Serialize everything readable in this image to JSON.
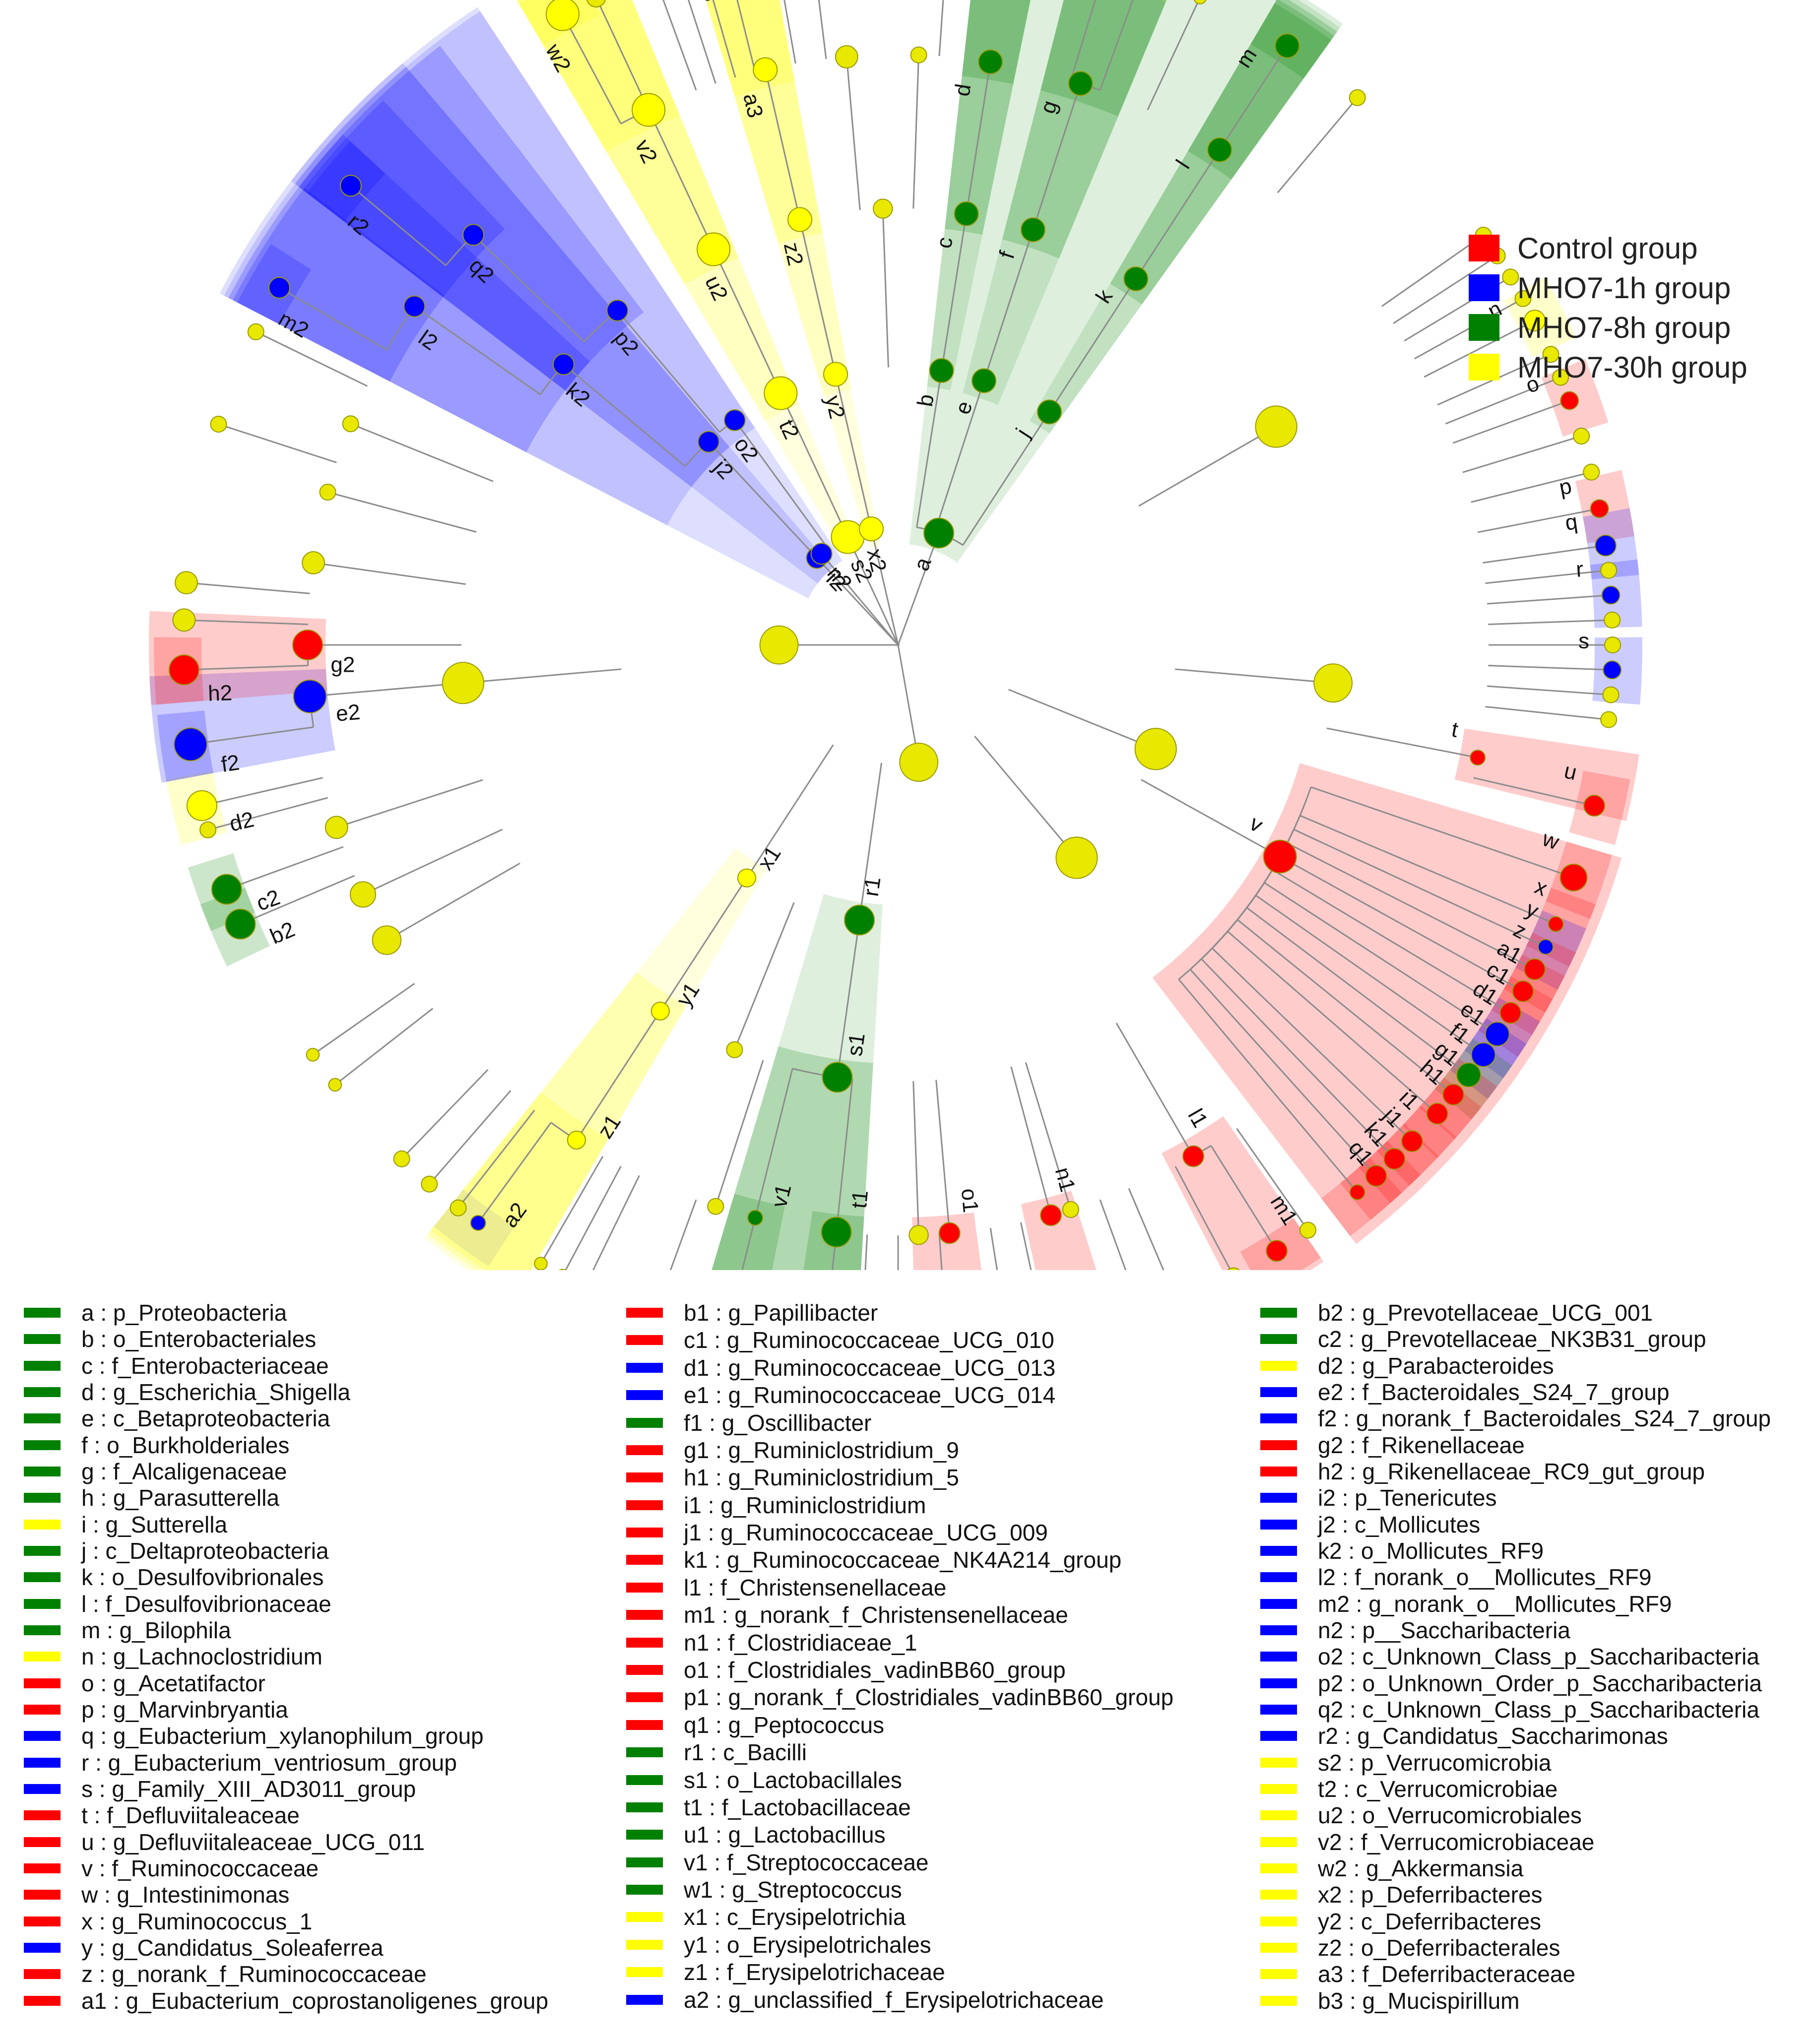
{
  "groups": [
    {
      "name": "Control group",
      "color": "#ff0000"
    },
    {
      "name": "MHO7-1h group",
      "color": "#0000ff"
    },
    {
      "name": "MHO7-8h group",
      "color": "#008000"
    },
    {
      "name": "MHO7-30h group",
      "color": "#ffff00"
    }
  ],
  "colors": {
    "Control": "#ff0000",
    "1h": "#0000ff",
    "8h": "#008000",
    "30h": "#ffff00",
    "node_plain": "#e8e800",
    "node_stroke": "#9a9a00",
    "branch": "#8c8c8c",
    "unclassified_band": "#a0a0a0"
  },
  "taxa": [
    {
      "code": "a",
      "name": "p_Proteobacteria",
      "group": "8h"
    },
    {
      "code": "b",
      "name": "o_Enterobacteriales",
      "group": "8h"
    },
    {
      "code": "c",
      "name": "f_Enterobacteriaceae",
      "group": "8h"
    },
    {
      "code": "d",
      "name": "g_Escherichia_Shigella",
      "group": "8h"
    },
    {
      "code": "e",
      "name": "c_Betaproteobacteria",
      "group": "8h"
    },
    {
      "code": "f",
      "name": "o_Burkholderiales",
      "group": "8h"
    },
    {
      "code": "g",
      "name": "f_Alcaligenaceae",
      "group": "8h"
    },
    {
      "code": "h",
      "name": "g_Parasutterella",
      "group": "8h"
    },
    {
      "code": "i",
      "name": "g_Sutterella",
      "group": "30h"
    },
    {
      "code": "j",
      "name": "c_Deltaproteobacteria",
      "group": "8h"
    },
    {
      "code": "k",
      "name": "o_Desulfovibrionales",
      "group": "8h"
    },
    {
      "code": "l",
      "name": "f_Desulfovibrionaceae",
      "group": "8h"
    },
    {
      "code": "m",
      "name": "g_Bilophila",
      "group": "8h"
    },
    {
      "code": "n",
      "name": "g_Lachnoclostridium",
      "group": "30h"
    },
    {
      "code": "o",
      "name": "g_Acetatifactor",
      "group": "Control"
    },
    {
      "code": "p",
      "name": "g_Marvinbryantia",
      "group": "Control"
    },
    {
      "code": "q",
      "name": "g_Eubacterium_xylanophilum_group",
      "group": "1h"
    },
    {
      "code": "r",
      "name": "g_Eubacterium_ventriosum_group",
      "group": "1h"
    },
    {
      "code": "s",
      "name": "g_Family_XIII_AD3011_group",
      "group": "1h"
    },
    {
      "code": "t",
      "name": "f_Defluviitaleaceae",
      "group": "Control"
    },
    {
      "code": "u",
      "name": "g_Defluviitaleaceae_UCG_011",
      "group": "Control"
    },
    {
      "code": "v",
      "name": "f_Ruminococcaceae",
      "group": "Control"
    },
    {
      "code": "w",
      "name": "g_Intestinimonas",
      "group": "Control"
    },
    {
      "code": "x",
      "name": "g_Ruminococcus_1",
      "group": "Control"
    },
    {
      "code": "y",
      "name": "g_Candidatus_Soleaferrea",
      "group": "1h"
    },
    {
      "code": "z",
      "name": "g_norank_f_Ruminococcaceae",
      "group": "Control"
    },
    {
      "code": "a1",
      "name": "g_Eubacterium_coprostanoligenes_group",
      "group": "Control"
    },
    {
      "code": "b1",
      "name": "g_Papillibacter",
      "group": "Control"
    },
    {
      "code": "c1",
      "name": "g_Ruminococcaceae_UCG_010",
      "group": "Control"
    },
    {
      "code": "d1",
      "name": "g_Ruminococcaceae_UCG_013",
      "group": "1h"
    },
    {
      "code": "e1",
      "name": "g_Ruminococcaceae_UCG_014",
      "group": "1h"
    },
    {
      "code": "f1",
      "name": "g_Oscillibacter",
      "group": "8h"
    },
    {
      "code": "g1",
      "name": "g_Ruminiclostridium_9",
      "group": "Control"
    },
    {
      "code": "h1",
      "name": "g_Ruminiclostridium_5",
      "group": "Control"
    },
    {
      "code": "i1",
      "name": "g_Ruminiclostridium",
      "group": "Control"
    },
    {
      "code": "j1",
      "name": "g_Ruminococcaceae_UCG_009",
      "group": "Control"
    },
    {
      "code": "k1",
      "name": "g_Ruminococcaceae_NK4A214_group",
      "group": "Control"
    },
    {
      "code": "l1",
      "name": "f_Christensenellaceae",
      "group": "Control"
    },
    {
      "code": "m1",
      "name": "g_norank_f_Christensenellaceae",
      "group": "Control"
    },
    {
      "code": "n1",
      "name": "f_Clostridiaceae_1",
      "group": "Control"
    },
    {
      "code": "o1",
      "name": "f_Clostridiales_vadinBB60_group",
      "group": "Control"
    },
    {
      "code": "p1",
      "name": "g_norank_f_Clostridiales_vadinBB60_group",
      "group": "Control"
    },
    {
      "code": "q1",
      "name": "g_Peptococcus",
      "group": "Control"
    },
    {
      "code": "r1",
      "name": "c_Bacilli",
      "group": "8h"
    },
    {
      "code": "s1",
      "name": "o_Lactobacillales",
      "group": "8h"
    },
    {
      "code": "t1",
      "name": "f_Lactobacillaceae",
      "group": "8h"
    },
    {
      "code": "u1",
      "name": "g_Lactobacillus",
      "group": "8h"
    },
    {
      "code": "v1",
      "name": "f_Streptococcaceae",
      "group": "8h"
    },
    {
      "code": "w1",
      "name": "g_Streptococcus",
      "group": "8h"
    },
    {
      "code": "x1",
      "name": "c_Erysipelotrichia",
      "group": "30h"
    },
    {
      "code": "y1",
      "name": "o_Erysipelotrichales",
      "group": "30h"
    },
    {
      "code": "z1",
      "name": "f_Erysipelotrichaceae",
      "group": "30h"
    },
    {
      "code": "a2",
      "name": "g_unclassified_f_Erysipelotrichaceae",
      "group": "1h"
    },
    {
      "code": "b2",
      "name": "g_Prevotellaceae_UCG_001",
      "group": "8h"
    },
    {
      "code": "c2",
      "name": "g_Prevotellaceae_NK3B31_group",
      "group": "8h"
    },
    {
      "code": "d2",
      "name": "g_Parabacteroides",
      "group": "30h"
    },
    {
      "code": "e2",
      "name": "f_Bacteroidales_S24_7_group",
      "group": "1h"
    },
    {
      "code": "f2",
      "name": "g_norank_f_Bacteroidales_S24_7_group",
      "group": "1h"
    },
    {
      "code": "g2",
      "name": "f_Rikenellaceae",
      "group": "Control"
    },
    {
      "code": "h2",
      "name": "g_Rikenellaceae_RC9_gut_group",
      "group": "Control"
    },
    {
      "code": "i2",
      "name": "p_Tenericutes",
      "group": "1h"
    },
    {
      "code": "j2",
      "name": "c_Mollicutes",
      "group": "1h"
    },
    {
      "code": "k2",
      "name": "o_Mollicutes_RF9",
      "group": "1h"
    },
    {
      "code": "l2",
      "name": "f_norank_o__Mollicutes_RF9",
      "group": "1h"
    },
    {
      "code": "m2",
      "name": "g_norank_o__Mollicutes_RF9",
      "group": "1h"
    },
    {
      "code": "n2",
      "name": "p__Saccharibacteria",
      "group": "1h"
    },
    {
      "code": "o2",
      "name": "c_Unknown_Class_p_Saccharibacteria",
      "group": "1h"
    },
    {
      "code": "p2",
      "name": "o_Unknown_Order_p_Saccharibacteria",
      "group": "1h"
    },
    {
      "code": "q2",
      "name": "c_Unknown_Class_p_Saccharibacteria",
      "group": "1h"
    },
    {
      "code": "r2",
      "name": "g_Candidatus_Saccharimonas",
      "group": "1h"
    },
    {
      "code": "s2",
      "name": "p_Verrucomicrobia",
      "group": "30h"
    },
    {
      "code": "t2",
      "name": "c_Verrucomicrobiae",
      "group": "30h"
    },
    {
      "code": "u2",
      "name": "o_Verrucomicrobiales",
      "group": "30h"
    },
    {
      "code": "v2",
      "name": "f_Verrucomicrobiaceae",
      "group": "30h"
    },
    {
      "code": "w2",
      "name": "g_Akkermansia",
      "group": "30h"
    },
    {
      "code": "x2",
      "name": "p_Deferribacteres",
      "group": "30h"
    },
    {
      "code": "y2",
      "name": "c_Deferribacteres",
      "group": "30h"
    },
    {
      "code": "z2",
      "name": "o_Deferribacterales",
      "group": "30h"
    },
    {
      "code": "a3",
      "name": "f_Deferribacteraceae",
      "group": "30h"
    },
    {
      "code": "b3",
      "name": "g_Mucispirillum",
      "group": "30h"
    }
  ]
}
